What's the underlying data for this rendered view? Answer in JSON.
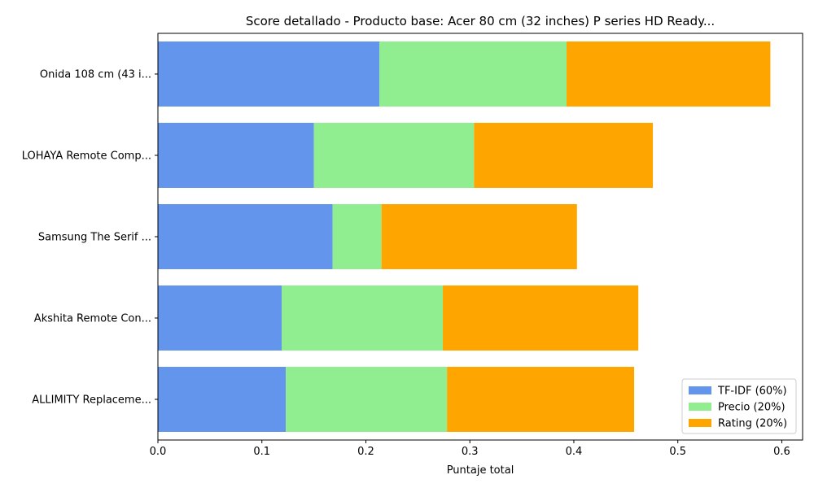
{
  "chart_data": {
    "type": "bar",
    "orientation": "horizontal",
    "stacked": true,
    "title": "Score detallado - Producto base: Acer 80 cm (32 inches) P series HD Ready...",
    "xlabel": "Puntaje total",
    "ylabel": "",
    "xlim": [
      0,
      0.62
    ],
    "xticks": [
      0.0,
      0.1,
      0.2,
      0.3,
      0.4,
      0.5,
      0.6
    ],
    "xtick_labels": [
      "0.0",
      "0.1",
      "0.2",
      "0.3",
      "0.4",
      "0.5",
      "0.6"
    ],
    "grid": false,
    "legend_position": "lower-right",
    "categories": [
      "Onida 108 cm (43 i...",
      "LOHAYA Remote Comp...",
      "Samsung The Serif ...",
      "Akshita Remote Con...",
      "ALLIMITY Replaceme..."
    ],
    "series": [
      {
        "name": "TF-IDF (60%)",
        "color": "#6495ED",
        "values": [
          0.213,
          0.15,
          0.168,
          0.119,
          0.123
        ]
      },
      {
        "name": "Precio (20%)",
        "color": "#90EE90",
        "values": [
          0.18,
          0.154,
          0.047,
          0.155,
          0.155
        ]
      },
      {
        "name": "Rating (20%)",
        "color": "#FFA500",
        "values": [
          0.196,
          0.172,
          0.188,
          0.188,
          0.18
        ]
      }
    ]
  }
}
